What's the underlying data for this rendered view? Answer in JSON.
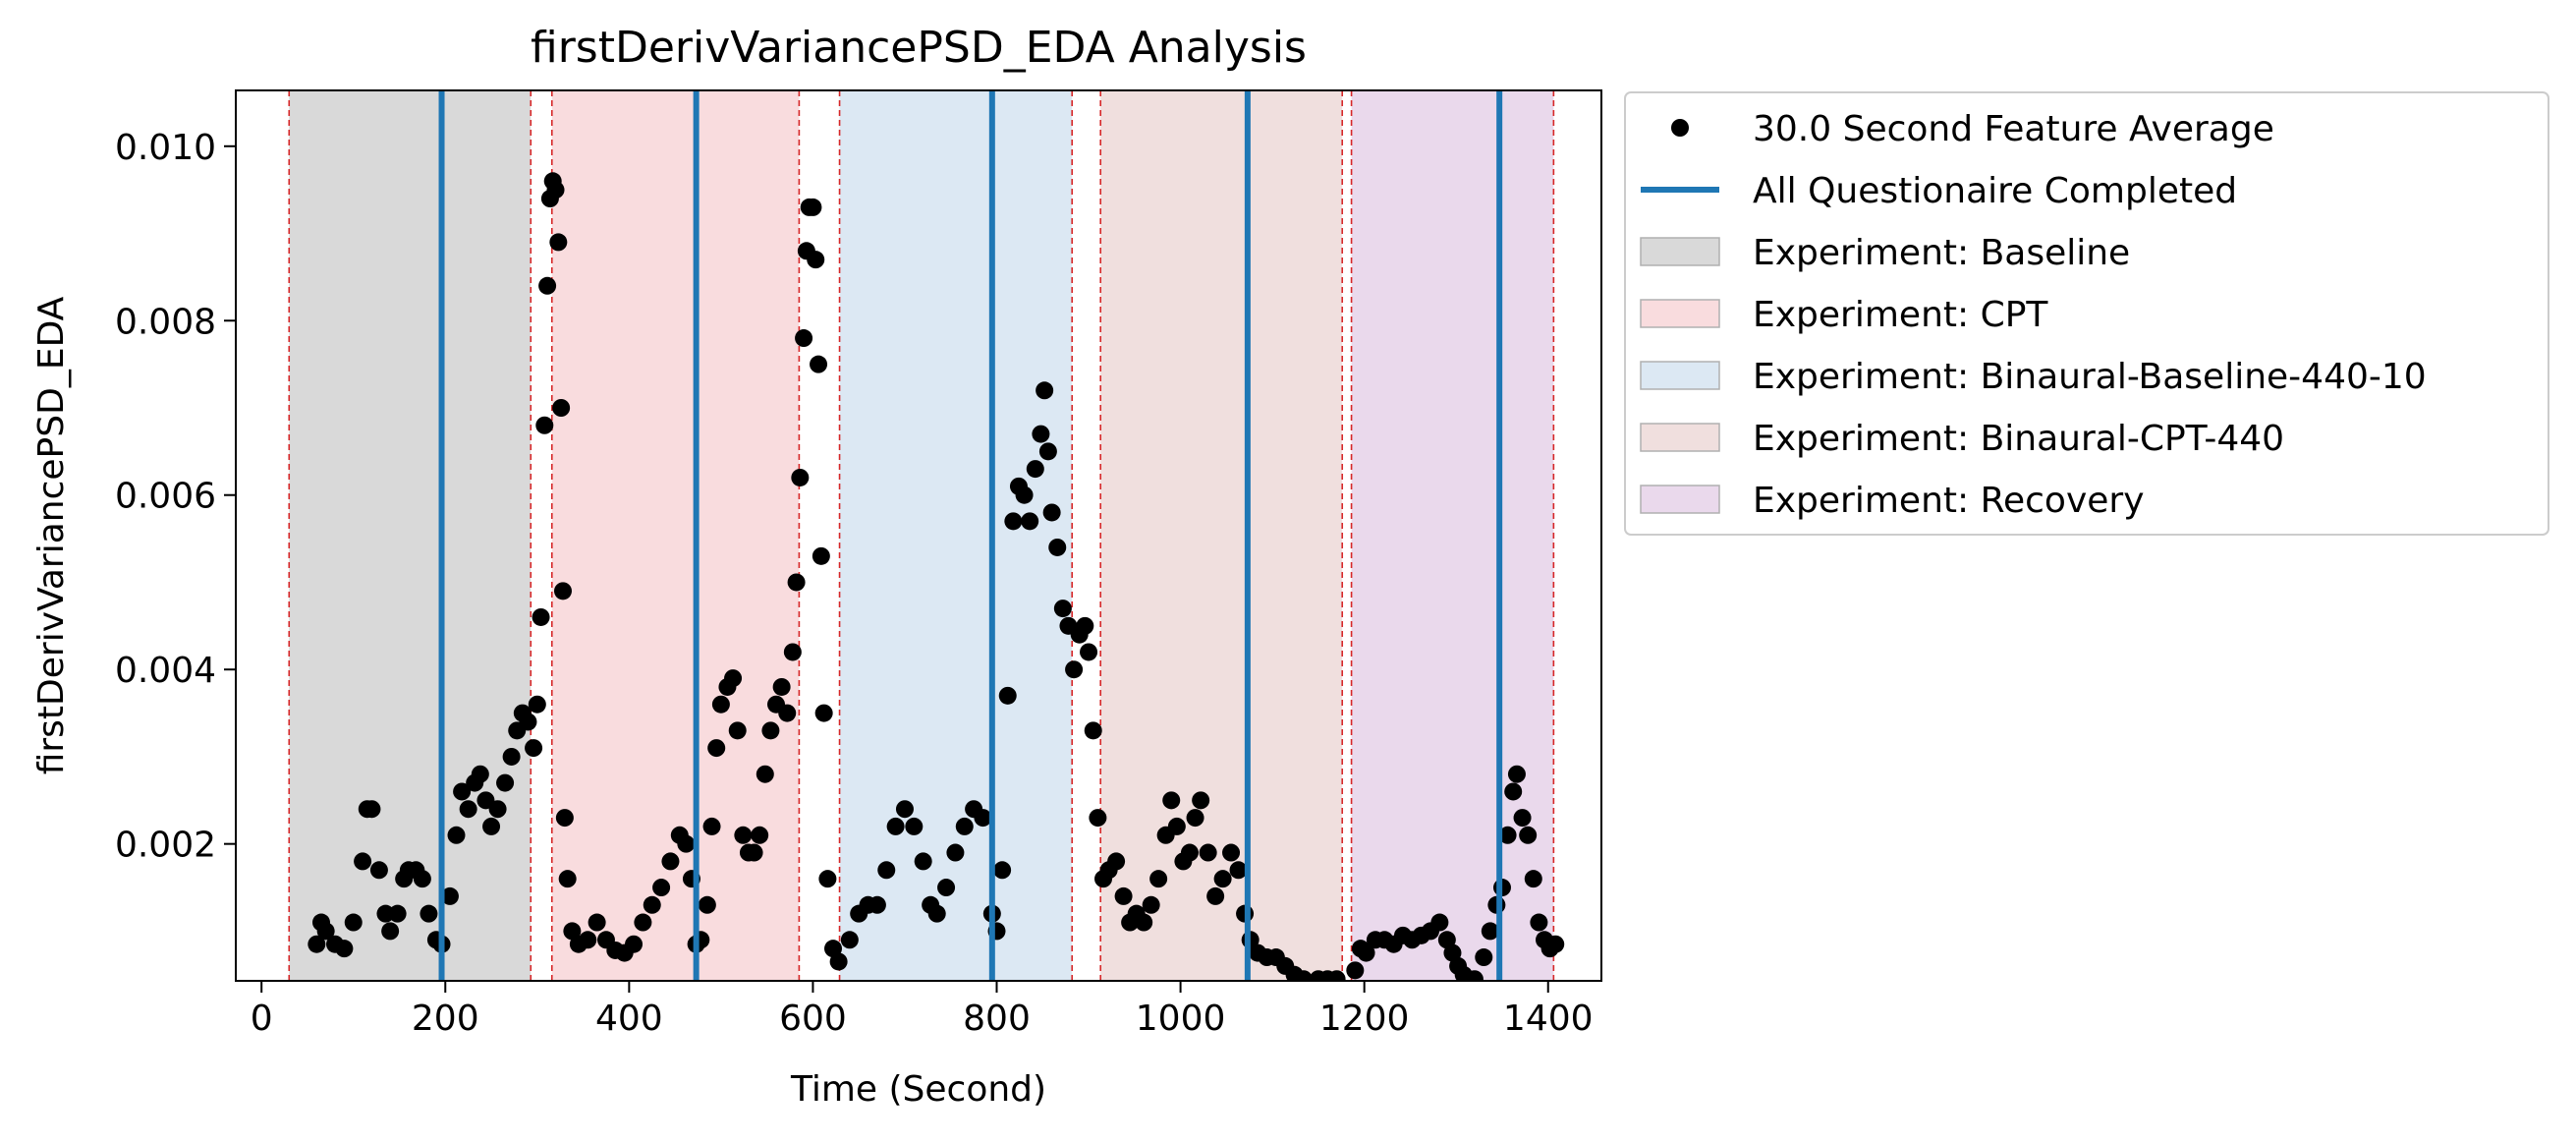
{
  "chart_data": {
    "type": "scatter",
    "title": "firstDerivVariancePSD_EDA Analysis",
    "xlabel": "Time (Second)",
    "ylabel": "firstDerivVariancePSD_EDA",
    "xlim": [
      -28,
      1458
    ],
    "ylim": [
      0.00043,
      0.01064
    ],
    "xticks": [
      0,
      200,
      400,
      600,
      800,
      1000,
      1200,
      1400
    ],
    "xtick_labels": [
      "0",
      "200",
      "400",
      "600",
      "800",
      "1000",
      "1200",
      "1400"
    ],
    "yticks": [
      0.002,
      0.004,
      0.006,
      0.008,
      0.01
    ],
    "ytick_labels": [
      "0.002",
      "0.004",
      "0.006",
      "0.008",
      "0.010"
    ],
    "grid": false,
    "legend_position": "outside-upper-right",
    "legend": [
      {
        "label": "30.0 Second Feature Average",
        "kind": "marker",
        "color": "#000000"
      },
      {
        "label": "All Questionaire Completed",
        "kind": "line",
        "color": "#1f77b4"
      },
      {
        "label": "Experiment: Baseline",
        "kind": "patch",
        "color": "#d9d9d9"
      },
      {
        "label": "Experiment: CPT",
        "kind": "patch",
        "color": "#f9dcde"
      },
      {
        "label": "Experiment: Binaural-Baseline-440-10",
        "kind": "patch",
        "color": "#dce8f3"
      },
      {
        "label": "Experiment: Binaural-CPT-440",
        "kind": "patch",
        "color": "#f0dfde"
      },
      {
        "label": "Experiment: Recovery",
        "kind": "patch",
        "color": "#ead9ec"
      }
    ],
    "phases": [
      {
        "name": "Experiment: Baseline",
        "start": 30,
        "end": 293,
        "color": "#d9d9d9"
      },
      {
        "name": "Experiment: CPT",
        "start": 316,
        "end": 585,
        "color": "#f9dcde"
      },
      {
        "name": "Experiment: Binaural-Baseline-440-10",
        "start": 629,
        "end": 882,
        "color": "#dce8f3"
      },
      {
        "name": "Experiment: Binaural-CPT-440",
        "start": 913,
        "end": 1176,
        "color": "#f0dfde"
      },
      {
        "name": "Experiment: Recovery",
        "start": 1186,
        "end": 1406,
        "color": "#ead9ec"
      }
    ],
    "phase_boundaries": [
      30,
      293,
      316,
      585,
      629,
      882,
      913,
      1176,
      1186,
      1406
    ],
    "questionnaire_completed": [
      196,
      473,
      795,
      1073,
      1347
    ],
    "series": [
      {
        "name": "30.0 Second Feature Average",
        "points": [
          [
            60,
            0.00085
          ],
          [
            65,
            0.0011
          ],
          [
            70,
            0.001
          ],
          [
            80,
            0.00085
          ],
          [
            90,
            0.0008
          ],
          [
            100,
            0.0011
          ],
          [
            110,
            0.0018
          ],
          [
            115,
            0.0024
          ],
          [
            120,
            0.0024
          ],
          [
            128,
            0.0017
          ],
          [
            135,
            0.0012
          ],
          [
            140,
            0.001
          ],
          [
            148,
            0.0012
          ],
          [
            155,
            0.0016
          ],
          [
            160,
            0.0017
          ],
          [
            168,
            0.0017
          ],
          [
            175,
            0.0016
          ],
          [
            182,
            0.0012
          ],
          [
            190,
            0.0009
          ],
          [
            196,
            0.00085
          ],
          [
            205,
            0.0014
          ],
          [
            212,
            0.0021
          ],
          [
            218,
            0.0026
          ],
          [
            225,
            0.0024
          ],
          [
            232,
            0.0027
          ],
          [
            238,
            0.0028
          ],
          [
            244,
            0.0025
          ],
          [
            250,
            0.0022
          ],
          [
            257,
            0.0024
          ],
          [
            265,
            0.0027
          ],
          [
            272,
            0.003
          ],
          [
            278,
            0.0033
          ],
          [
            284,
            0.0035
          ],
          [
            290,
            0.0034
          ],
          [
            296,
            0.0031
          ],
          [
            300,
            0.0036
          ],
          [
            304,
            0.0046
          ],
          [
            308,
            0.0068
          ],
          [
            311,
            0.0084
          ],
          [
            314,
            0.0094
          ],
          [
            317,
            0.0096
          ],
          [
            320,
            0.0095
          ],
          [
            323,
            0.0089
          ],
          [
            326,
            0.007
          ],
          [
            328,
            0.0049
          ],
          [
            330,
            0.0023
          ],
          [
            333,
            0.0016
          ],
          [
            338,
            0.001
          ],
          [
            345,
            0.00085
          ],
          [
            355,
            0.0009
          ],
          [
            365,
            0.0011
          ],
          [
            375,
            0.0009
          ],
          [
            385,
            0.00078
          ],
          [
            395,
            0.00075
          ],
          [
            405,
            0.00085
          ],
          [
            415,
            0.0011
          ],
          [
            425,
            0.0013
          ],
          [
            435,
            0.0015
          ],
          [
            445,
            0.0018
          ],
          [
            455,
            0.0021
          ],
          [
            462,
            0.002
          ],
          [
            468,
            0.0016
          ],
          [
            473,
            0.00085
          ],
          [
            478,
            0.0009
          ],
          [
            485,
            0.0013
          ],
          [
            490,
            0.0022
          ],
          [
            495,
            0.0031
          ],
          [
            500,
            0.0036
          ],
          [
            507,
            0.0038
          ],
          [
            513,
            0.0039
          ],
          [
            518,
            0.0033
          ],
          [
            524,
            0.0021
          ],
          [
            530,
            0.0019
          ],
          [
            536,
            0.0019
          ],
          [
            542,
            0.0021
          ],
          [
            548,
            0.0028
          ],
          [
            554,
            0.0033
          ],
          [
            560,
            0.0036
          ],
          [
            566,
            0.0038
          ],
          [
            572,
            0.0035
          ],
          [
            578,
            0.0042
          ],
          [
            582,
            0.005
          ],
          [
            586,
            0.0062
          ],
          [
            590,
            0.0078
          ],
          [
            593,
            0.0088
          ],
          [
            596,
            0.0093
          ],
          [
            600,
            0.0093
          ],
          [
            603,
            0.0087
          ],
          [
            606,
            0.0075
          ],
          [
            609,
            0.0053
          ],
          [
            612,
            0.0035
          ],
          [
            616,
            0.0016
          ],
          [
            622,
            0.0008
          ],
          [
            628,
            0.00065
          ],
          [
            640,
            0.0009
          ],
          [
            650,
            0.0012
          ],
          [
            660,
            0.0013
          ],
          [
            670,
            0.0013
          ],
          [
            680,
            0.0017
          ],
          [
            690,
            0.0022
          ],
          [
            700,
            0.0024
          ],
          [
            710,
            0.0022
          ],
          [
            720,
            0.0018
          ],
          [
            728,
            0.0013
          ],
          [
            735,
            0.0012
          ],
          [
            745,
            0.0015
          ],
          [
            755,
            0.0019
          ],
          [
            765,
            0.0022
          ],
          [
            775,
            0.0024
          ],
          [
            785,
            0.0023
          ],
          [
            795,
            0.0012
          ],
          [
            800,
            0.001
          ],
          [
            806,
            0.0017
          ],
          [
            812,
            0.0037
          ],
          [
            818,
            0.0057
          ],
          [
            824,
            0.0061
          ],
          [
            830,
            0.006
          ],
          [
            836,
            0.0057
          ],
          [
            842,
            0.0063
          ],
          [
            848,
            0.0067
          ],
          [
            852,
            0.0072
          ],
          [
            856,
            0.0065
          ],
          [
            860,
            0.0058
          ],
          [
            866,
            0.0054
          ],
          [
            872,
            0.0047
          ],
          [
            878,
            0.0045
          ],
          [
            884,
            0.004
          ],
          [
            890,
            0.0044
          ],
          [
            896,
            0.0045
          ],
          [
            900,
            0.0042
          ],
          [
            905,
            0.0033
          ],
          [
            910,
            0.0023
          ],
          [
            916,
            0.0016
          ],
          [
            922,
            0.0017
          ],
          [
            930,
            0.0018
          ],
          [
            938,
            0.0014
          ],
          [
            945,
            0.0011
          ],
          [
            952,
            0.0012
          ],
          [
            960,
            0.0011
          ],
          [
            968,
            0.0013
          ],
          [
            976,
            0.0016
          ],
          [
            984,
            0.0021
          ],
          [
            990,
            0.0025
          ],
          [
            996,
            0.0022
          ],
          [
            1003,
            0.0018
          ],
          [
            1010,
            0.0019
          ],
          [
            1016,
            0.0023
          ],
          [
            1022,
            0.0025
          ],
          [
            1030,
            0.0019
          ],
          [
            1038,
            0.0014
          ],
          [
            1046,
            0.0016
          ],
          [
            1055,
            0.0019
          ],
          [
            1063,
            0.0017
          ],
          [
            1070,
            0.0012
          ],
          [
            1076,
            0.0009
          ],
          [
            1084,
            0.00075
          ],
          [
            1094,
            0.0007
          ],
          [
            1104,
            0.0007
          ],
          [
            1114,
            0.0006
          ],
          [
            1124,
            0.0005
          ],
          [
            1134,
            0.00045
          ],
          [
            1150,
            0.00045
          ],
          [
            1160,
            0.00045
          ],
          [
            1170,
            0.00045
          ],
          [
            1190,
            0.00055
          ],
          [
            1196,
            0.0008
          ],
          [
            1202,
            0.00075
          ],
          [
            1212,
            0.0009
          ],
          [
            1222,
            0.0009
          ],
          [
            1232,
            0.00085
          ],
          [
            1242,
            0.00095
          ],
          [
            1252,
            0.0009
          ],
          [
            1262,
            0.00095
          ],
          [
            1272,
            0.001
          ],
          [
            1282,
            0.0011
          ],
          [
            1290,
            0.0009
          ],
          [
            1296,
            0.00075
          ],
          [
            1302,
            0.0006
          ],
          [
            1308,
            0.0005
          ],
          [
            1314,
            0.00045
          ],
          [
            1320,
            0.00045
          ],
          [
            1330,
            0.0007
          ],
          [
            1337,
            0.001
          ],
          [
            1344,
            0.0013
          ],
          [
            1350,
            0.0015
          ],
          [
            1356,
            0.0021
          ],
          [
            1362,
            0.0026
          ],
          [
            1366,
            0.0028
          ],
          [
            1372,
            0.0023
          ],
          [
            1378,
            0.0021
          ],
          [
            1384,
            0.0016
          ],
          [
            1390,
            0.0011
          ],
          [
            1396,
            0.0009
          ],
          [
            1402,
            0.0008
          ],
          [
            1408,
            0.00085
          ]
        ]
      }
    ]
  }
}
